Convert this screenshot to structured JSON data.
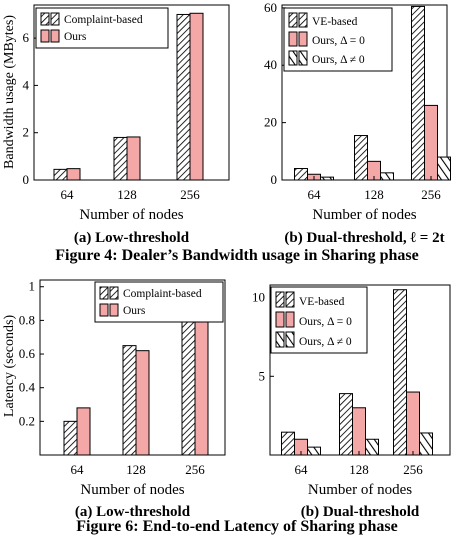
{
  "colors": {
    "bar_a": "#ffffff",
    "bar_b": "#f4a7a7",
    "bar_c": "#ffffff",
    "stroke": "#000000"
  },
  "figures": [
    {
      "caption": "Figure 4: Dealer’s Bandwidth usage in Sharing phase"
    },
    {
      "caption": "Figure 6: End-to-end Latency of Sharing phase"
    }
  ],
  "chart_data": [
    {
      "type": "bar",
      "title": "(a) Low-threshold",
      "xlabel": "Number of nodes",
      "ylabel": "Bandwidth usage (MBytes)",
      "categories": [
        "64",
        "128",
        "256"
      ],
      "ylim": [
        0,
        7.4
      ],
      "yticks": [
        0,
        2,
        4,
        6
      ],
      "legend_position": "top-left",
      "series": [
        {
          "name": "Complaint-based",
          "pattern": "hatch",
          "values": [
            0.45,
            1.8,
            7.0
          ]
        },
        {
          "name": "Ours",
          "pattern": "pink",
          "values": [
            0.48,
            1.82,
            7.05
          ]
        }
      ]
    },
    {
      "type": "bar",
      "title": "(b) Dual-threshold, ℓ = 2t",
      "xlabel": "Number of nodes",
      "ylabel": "",
      "categories": [
        "64",
        "128",
        "256"
      ],
      "ylim": [
        0,
        61
      ],
      "yticks": [
        0,
        20,
        40,
        60
      ],
      "legend_position": "top-left",
      "series": [
        {
          "name": "VE-based",
          "pattern": "hatch",
          "values": [
            4.0,
            15.5,
            60.5
          ]
        },
        {
          "name": "Ours, Δ = 0",
          "pattern": "pink",
          "values": [
            2.0,
            6.5,
            26.0
          ]
        },
        {
          "name": "Ours, Δ ≠ 0",
          "pattern": "crosshatch",
          "values": [
            1.0,
            2.5,
            8.0
          ]
        }
      ]
    },
    {
      "type": "bar",
      "title": "(a) Low-threshold",
      "xlabel": "Number of nodes",
      "ylabel": "Latency (seconds)",
      "categories": [
        "64",
        "128",
        "256"
      ],
      "ylim": [
        0,
        1.04
      ],
      "yticks": [
        0.2,
        0.4,
        0.6,
        0.8,
        1
      ],
      "legend_position": "top-right",
      "series": [
        {
          "name": "Complaint-based",
          "pattern": "hatch",
          "values": [
            0.2,
            0.65,
            0.93
          ]
        },
        {
          "name": "Ours",
          "pattern": "pink",
          "values": [
            0.28,
            0.62,
            0.89
          ]
        }
      ]
    },
    {
      "type": "bar",
      "title": "(b) Dual-threshold",
      "xlabel": "Number of nodes",
      "ylabel": "",
      "categories": [
        "64",
        "128",
        "256"
      ],
      "ylim": [
        0,
        10.8
      ],
      "yticks": [
        5,
        10
      ],
      "legend_position": "top-left",
      "series": [
        {
          "name": "VE-based",
          "pattern": "hatch",
          "values": [
            1.45,
            3.9,
            10.5
          ]
        },
        {
          "name": "Ours, Δ = 0",
          "pattern": "pink",
          "values": [
            1.0,
            3.0,
            4.0
          ]
        },
        {
          "name": "Ours, Δ ≠ 0",
          "pattern": "crosshatch",
          "values": [
            0.5,
            1.0,
            1.4
          ]
        }
      ]
    }
  ]
}
